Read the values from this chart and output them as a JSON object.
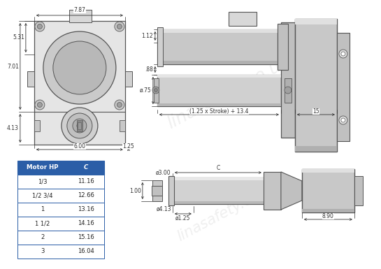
{
  "background_color": "#ffffff",
  "table_header_bg": "#2b5ea7",
  "table_header_text": "#ffffff",
  "table_border_color": "#2b5ea7",
  "table_text_color": "#222222",
  "motor_hp": [
    "1/3",
    "1/2 3/4",
    "1",
    "1 1/2",
    "2",
    "3"
  ],
  "c_values": [
    "11.16",
    "12.66",
    "13.16",
    "14.16",
    "15.16",
    "16.04"
  ],
  "lc": "#555555",
  "dc": "#333333",
  "shade1": "#d0d0d0",
  "shade2": "#b0b0b0",
  "shade3": "#e8e8e8",
  "watermark_color": "#cccccc",
  "dim_7_87": "7.87",
  "dim_5_31": "5.31",
  "dim_7_01": "7.01",
  "dim_4_13": "4.13",
  "dim_6_00": "6.00",
  "dim_1_25": "1.25",
  "dim_1_12": "1.12",
  "dim_88": ".88",
  "dim_75": "ø.75",
  "dim_stroke": "(1.25 x Stroke) + 13.4",
  "dim_15": "15",
  "dim_C": "C",
  "dim_3_00": "ø3.00",
  "dim_1_00": "1.00",
  "dim_4_13b": "ø4.13",
  "dim_1_25b": "ø1.25",
  "dim_8_90": "8.90"
}
